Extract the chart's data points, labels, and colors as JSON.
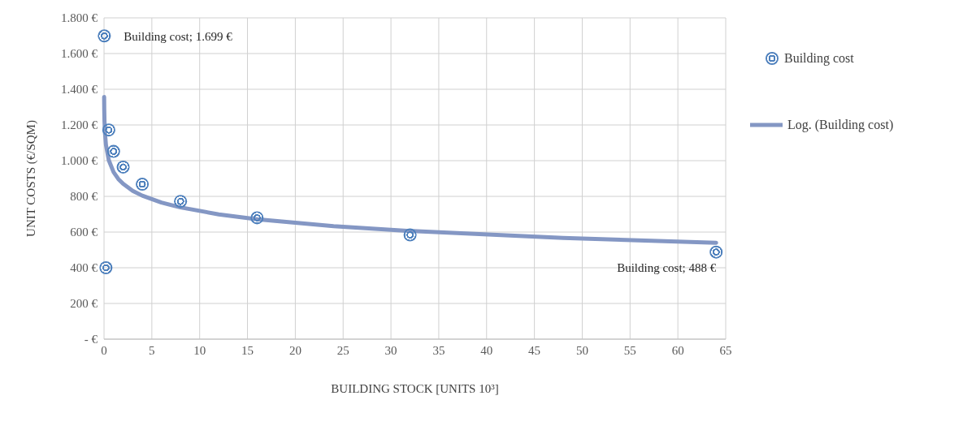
{
  "chart_data": {
    "type": "scatter",
    "xlabel": "BUILDING STOCK [UNITS 10³]",
    "ylabel": "UNIT COSTS (€/SQM)",
    "series": [
      {
        "name": "Building cost",
        "color": "#4f81bd",
        "marker": "circle",
        "x": [
          0.03,
          0.2,
          0.5,
          1,
          2,
          4,
          8,
          16,
          32,
          64
        ],
        "values": [
          1699,
          400,
          1172,
          1052,
          964,
          868,
          772,
          680,
          584,
          488
        ]
      },
      {
        "name": "Log. (Building cost)",
        "type": "line",
        "color": "#8497c4",
        "line_style": "solid",
        "marker": "none",
        "x": [
          0.012,
          0.025,
          0.05,
          0.1,
          0.2,
          0.5,
          1,
          1.5,
          2,
          3,
          4,
          6,
          8,
          12,
          16,
          24,
          32,
          48,
          64
        ],
        "values": [
          1357,
          1287,
          1221,
          1155,
          1089,
          1002,
          936,
          897,
          870,
          831,
          804,
          765,
          738,
          699,
          672,
          633,
          606,
          567,
          540
        ]
      }
    ],
    "xlim": [
      0,
      65
    ],
    "xticks": [
      0,
      5,
      10,
      15,
      20,
      25,
      30,
      35,
      40,
      45,
      50,
      55,
      60,
      65
    ],
    "ylim": [
      0,
      1800
    ],
    "yticks": [
      {
        "value": 0,
        "label": "-  €"
      },
      {
        "value": 200,
        "label": "200 €"
      },
      {
        "value": 400,
        "label": "400 €"
      },
      {
        "value": 600,
        "label": "600 €"
      },
      {
        "value": 800,
        "label": "800 €"
      },
      {
        "value": 1000,
        "label": "1.000 €"
      },
      {
        "value": 1200,
        "label": "1.200 €"
      },
      {
        "value": 1400,
        "label": "1.400 €"
      },
      {
        "value": 1600,
        "label": "1.600 €"
      },
      {
        "value": 1800,
        "label": "1.800 €"
      }
    ],
    "grid": true,
    "legend": "top right",
    "annotations": [
      {
        "text": "Building cost;  1.699 €",
        "x": 0.03,
        "y": 1699
      },
      {
        "text": "Building cost;  488 €",
        "x": 64,
        "y": 488
      }
    ]
  }
}
